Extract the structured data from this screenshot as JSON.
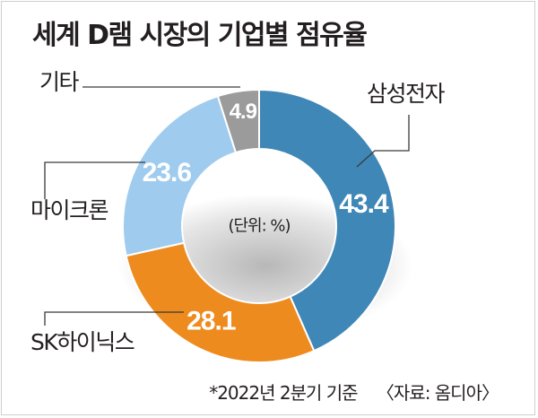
{
  "chart_data": {
    "type": "pie",
    "title": "세계 D램 시장의 기업별 점유율",
    "unit_label": "(단위: %)",
    "categories": [
      "삼성전자",
      "SK하이닉스",
      "마이크론",
      "기타"
    ],
    "values": [
      43.4,
      28.1,
      23.6,
      4.9
    ],
    "value_labels": [
      "43.4",
      "28.1",
      "23.6",
      "4.9"
    ],
    "colors": [
      "#3f87b7",
      "#ee8b1e",
      "#9ecbee",
      "#9b9b9b"
    ],
    "donut": true,
    "legend": "callout labels around the ring"
  },
  "footer": {
    "note": "*2022년 2분기 기준",
    "source": "〈자료: 옴디아〉"
  }
}
